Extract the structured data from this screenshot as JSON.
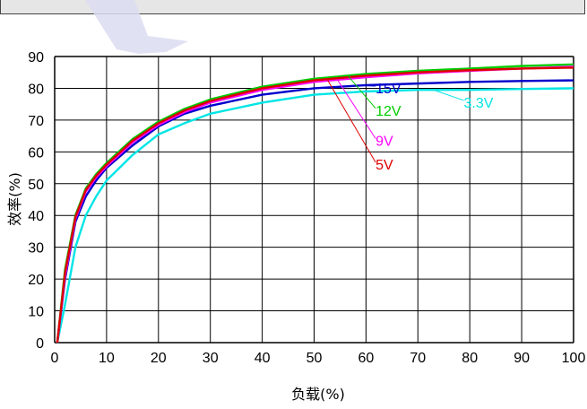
{
  "chart_data": {
    "type": "line",
    "title": "",
    "xlabel": "负载(%)",
    "ylabel": "效率(%)",
    "xlim": [
      0,
      100
    ],
    "ylim": [
      0,
      90
    ],
    "x_ticks": [
      "0",
      "10",
      "20",
      "30",
      "40",
      "50",
      "60",
      "70",
      "80",
      "90",
      "100"
    ],
    "y_ticks": [
      "0",
      "10",
      "20",
      "30",
      "40",
      "50",
      "60",
      "70",
      "80",
      "90"
    ],
    "grid": true,
    "legend": "inline labels",
    "series": [
      {
        "name": "3.3V",
        "color": "#00e5e5",
        "x": [
          0.5,
          2,
          4,
          6,
          8,
          10,
          15,
          20,
          25,
          30,
          40,
          50,
          60,
          70,
          80,
          90,
          100
        ],
        "y": [
          0,
          12,
          30,
          40,
          46,
          51,
          59,
          65.5,
          69,
          72,
          75.5,
          78,
          79,
          79.5,
          79.5,
          79.8,
          80
        ]
      },
      {
        "name": "15V",
        "color": "#0000cc",
        "x": [
          0.5,
          2,
          4,
          6,
          8,
          10,
          15,
          20,
          25,
          30,
          40,
          50,
          60,
          70,
          80,
          90,
          100
        ],
        "y": [
          0,
          20,
          38,
          46,
          51,
          55,
          62,
          68,
          72,
          74.5,
          78,
          80,
          81,
          81.5,
          82,
          82.3,
          82.5
        ]
      },
      {
        "name": "12V",
        "color": "#00cc00",
        "x": [
          0.5,
          2,
          4,
          6,
          8,
          10,
          15,
          20,
          25,
          30,
          40,
          50,
          60,
          70,
          80,
          90,
          100
        ],
        "y": [
          0,
          23,
          40,
          48.5,
          53,
          56.5,
          64,
          69.5,
          73.5,
          76.5,
          80.5,
          83,
          84.5,
          85.5,
          86.2,
          87,
          87.5
        ]
      },
      {
        "name": "9V",
        "color": "#ff00ff",
        "x": [
          0.5,
          2,
          4,
          6,
          8,
          10,
          15,
          20,
          25,
          30,
          40,
          50,
          60,
          70,
          80,
          90,
          100
        ],
        "y": [
          0,
          21,
          39,
          47.5,
          52,
          55.5,
          63,
          68.5,
          72.5,
          75.5,
          79.5,
          82,
          83.5,
          84.7,
          85.5,
          86.2,
          86.8
        ]
      },
      {
        "name": "5V",
        "color": "#dd0000",
        "x": [
          0.5,
          2,
          4,
          6,
          8,
          10,
          15,
          20,
          25,
          30,
          40,
          50,
          60,
          70,
          80,
          90,
          100
        ],
        "y": [
          0,
          22,
          39.5,
          48,
          52.5,
          56,
          63.5,
          69,
          73,
          76,
          80,
          82.5,
          84,
          85,
          85.7,
          86.2,
          86.5
        ]
      }
    ]
  }
}
